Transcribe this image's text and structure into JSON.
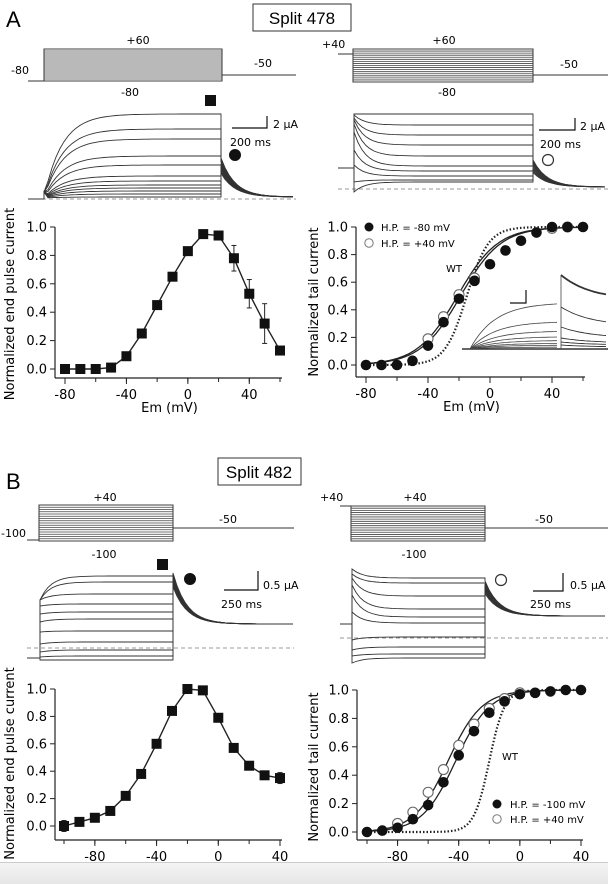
{
  "panels": [
    {
      "label": "A",
      "title": "Split 478",
      "protocols": [
        {
          "holding_label": "-80",
          "top_label": "+60",
          "bottom_label": "-80",
          "tail_label": "-50"
        },
        {
          "holding_label": "+40",
          "top_label": "+60",
          "bottom_label": "-80",
          "tail_label": "-50"
        }
      ],
      "traces": [
        {
          "marker_square": true,
          "marker": "filled-circle",
          "scale_current": "2 μA",
          "scale_time": "200 ms"
        },
        {
          "marker_square": false,
          "marker": "open-circle",
          "scale_current": "2 μA",
          "scale_time": "200 ms"
        }
      ]
    },
    {
      "label": "B",
      "title": "Split 482",
      "protocols": [
        {
          "holding_label": "-100",
          "top_label": "+40",
          "bottom_label": "-100",
          "tail_label": "-50"
        },
        {
          "holding_label": "+40",
          "top_label": "+40",
          "bottom_label": "-100",
          "tail_label": "-50"
        }
      ],
      "traces": [
        {
          "marker_square": true,
          "marker": "filled-circle",
          "scale_current": "0.5 μA",
          "scale_time": "250 ms"
        },
        {
          "marker_square": false,
          "marker": "open-circle",
          "scale_current": "0.5 μA",
          "scale_time": "250 ms"
        }
      ]
    }
  ],
  "chart_data": [
    {
      "id": "A-left",
      "type": "line",
      "title": "",
      "xlabel": "Em (mV)",
      "ylabel": "Normalized end pulse current",
      "xlim": [
        -80,
        60
      ],
      "ylim": [
        0,
        1
      ],
      "xticks": [
        -80,
        -40,
        0,
        40
      ],
      "yticks": [
        0.0,
        0.2,
        0.4,
        0.6,
        0.8,
        1.0
      ],
      "grid": false,
      "series": [
        {
          "name": "end pulse current",
          "marker": "filled-square",
          "x": [
            -80,
            -70,
            -60,
            -50,
            -40,
            -30,
            -20,
            -10,
            0,
            10,
            20,
            30,
            40,
            50,
            60
          ],
          "y": [
            0.0,
            0.0,
            0.0,
            0.01,
            0.09,
            0.25,
            0.45,
            0.65,
            0.83,
            0.95,
            0.94,
            0.78,
            0.53,
            0.32,
            0.13
          ],
          "err": [
            0,
            0,
            0,
            0,
            0,
            0,
            0,
            0,
            0.02,
            0,
            0.02,
            0.09,
            0.1,
            0.14,
            0
          ]
        }
      ]
    },
    {
      "id": "A-right",
      "type": "scatter",
      "title": "",
      "xlabel": "Em (mV)",
      "ylabel": "Normalized tail current",
      "xlim": [
        -80,
        60
      ],
      "ylim": [
        0,
        1
      ],
      "xticks": [
        -80,
        -40,
        0,
        40
      ],
      "yticks": [
        0.0,
        0.2,
        0.4,
        0.6,
        0.8,
        1.0
      ],
      "grid": false,
      "legend_position": "top-left",
      "annotation": "WT",
      "series": [
        {
          "name": "H.P. = -80 mV",
          "marker": "filled-circle",
          "x": [
            -80,
            -70,
            -60,
            -50,
            -40,
            -30,
            -20,
            -10,
            0,
            10,
            20,
            30,
            40,
            50,
            60
          ],
          "y": [
            0.0,
            0.0,
            0.0,
            0.03,
            0.14,
            0.31,
            0.48,
            0.61,
            0.73,
            0.83,
            0.9,
            0.96,
            1.0,
            1.0,
            1.0
          ]
        },
        {
          "name": "H.P. = +40 mV",
          "marker": "open-circle",
          "x": [
            -40,
            -30,
            -20,
            -10,
            40,
            50
          ],
          "y": [
            0.19,
            0.35,
            0.51,
            0.63,
            0.99,
            1.0
          ]
        },
        {
          "name": "fit -80",
          "style": "solid",
          "v_half": -19,
          "k": 13
        },
        {
          "name": "fit +40",
          "style": "solid",
          "v_half": -21,
          "k": 13
        },
        {
          "name": "WT",
          "style": "dotted",
          "v_half": -15,
          "k": 7
        }
      ]
    },
    {
      "id": "B-left",
      "type": "line",
      "title": "",
      "xlabel": "Em (mV)",
      "ylabel": "Normalized end pulse current",
      "xlim": [
        -100,
        40
      ],
      "ylim": [
        0,
        1
      ],
      "xticks": [
        -80,
        -40,
        0,
        40
      ],
      "yticks": [
        0.0,
        0.2,
        0.4,
        0.6,
        0.8,
        1.0
      ],
      "grid": false,
      "series": [
        {
          "name": "end pulse current",
          "marker": "filled-square",
          "x": [
            -100,
            -90,
            -80,
            -70,
            -60,
            -50,
            -40,
            -30,
            -20,
            -10,
            0,
            10,
            20,
            30,
            40
          ],
          "y": [
            0.0,
            0.03,
            0.06,
            0.11,
            0.22,
            0.38,
            0.6,
            0.84,
            1.0,
            0.99,
            0.79,
            0.57,
            0.44,
            0.37,
            0.35
          ],
          "err": [
            0.04,
            0.03,
            0.03,
            0.02,
            0,
            0,
            0,
            0,
            0,
            0,
            0,
            0,
            0,
            0,
            0.04
          ]
        }
      ]
    },
    {
      "id": "B-right",
      "type": "scatter",
      "title": "",
      "xlabel": "Em (mV)",
      "ylabel": "Normalized tail current",
      "xlim": [
        -100,
        40
      ],
      "ylim": [
        0,
        1
      ],
      "xticks": [
        -80,
        -40,
        0,
        40
      ],
      "yticks": [
        0.0,
        0.2,
        0.4,
        0.6,
        0.8,
        1.0
      ],
      "grid": false,
      "legend_position": "bottom-right",
      "annotation": "WT",
      "series": [
        {
          "name": "H.P. = -100 mV",
          "marker": "filled-circle",
          "x": [
            -100,
            -90,
            -80,
            -70,
            -60,
            -50,
            -40,
            -30,
            -20,
            -10,
            0,
            10,
            20,
            30,
            40
          ],
          "y": [
            0.0,
            0.01,
            0.03,
            0.09,
            0.19,
            0.35,
            0.54,
            0.71,
            0.84,
            0.92,
            0.97,
            0.98,
            0.99,
            1.0,
            1.0
          ]
        },
        {
          "name": "H.P. = +40 mV",
          "marker": "open-circle",
          "x": [
            -80,
            -70,
            -60,
            -50,
            -40,
            -30,
            -20,
            -10,
            0
          ],
          "y": [
            0.06,
            0.14,
            0.28,
            0.44,
            0.61,
            0.76,
            0.87,
            0.94,
            0.98
          ]
        },
        {
          "name": "fit -100",
          "style": "solid",
          "v_half": -42,
          "k": 11
        },
        {
          "name": "fit +40",
          "style": "solid",
          "v_half": -47,
          "k": 11
        },
        {
          "name": "WT",
          "style": "dotted",
          "v_half": -20,
          "k": 5
        }
      ]
    }
  ]
}
